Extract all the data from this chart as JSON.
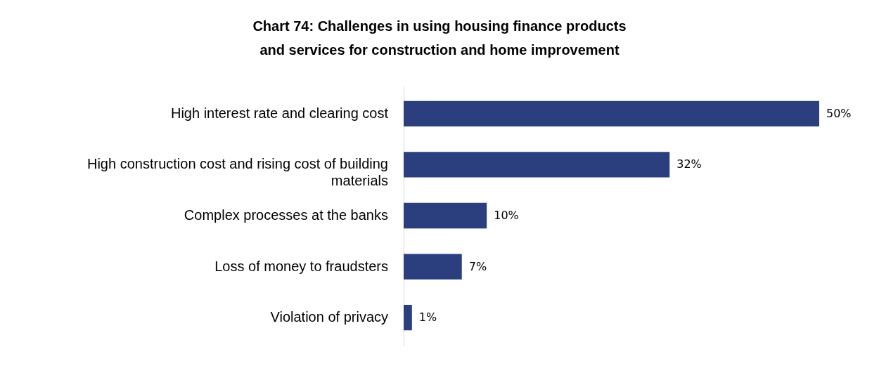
{
  "chart_data": {
    "type": "bar",
    "orientation": "horizontal",
    "title": [
      "Chart 74: Challenges in using housing finance products",
      "and services for construction and home improvement"
    ],
    "categories": [
      "High interest rate and clearing cost",
      "High construction cost and rising cost of building materials",
      "Complex processes at the banks",
      "Loss of money to fraudsters",
      "Violation of privacy"
    ],
    "values": [
      50,
      32,
      10,
      7,
      1
    ],
    "value_labels": [
      "50%",
      "32%",
      "10%",
      "7%",
      "1%"
    ],
    "color": "#2b3f7f"
  }
}
